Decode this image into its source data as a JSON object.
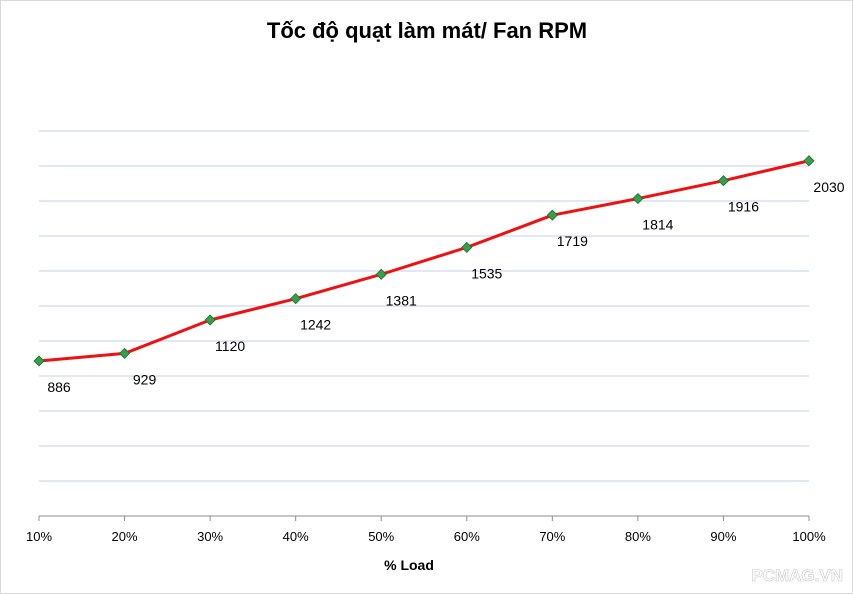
{
  "chart_data": {
    "type": "line",
    "title": "Tốc độ quạt làm mát/ Fan RPM",
    "xlabel": "% Load",
    "ylabel": "",
    "categories": [
      "10%",
      "20%",
      "30%",
      "40%",
      "50%",
      "60%",
      "70%",
      "80%",
      "90%",
      "100%"
    ],
    "series": [
      {
        "values": [
          886,
          929,
          1120,
          1242,
          1381,
          1535,
          1719,
          1814,
          1916,
          2030
        ],
        "labels": [
          "886",
          "929",
          "1120",
          "1242",
          "1381",
          "1535",
          "1719",
          "1814",
          "1916",
          "2030"
        ],
        "line_color": "#ee1111",
        "marker_color": "#33a04a",
        "marker_shape": "diamond"
      }
    ],
    "ylim": [
      0,
      2200
    ],
    "y_gridline_step": 200,
    "grid": "horizontal",
    "gridline_color": "#c5cfe8",
    "y_tick_labels_shown": false,
    "legend": "none"
  },
  "watermark": "PCMAG.VN"
}
